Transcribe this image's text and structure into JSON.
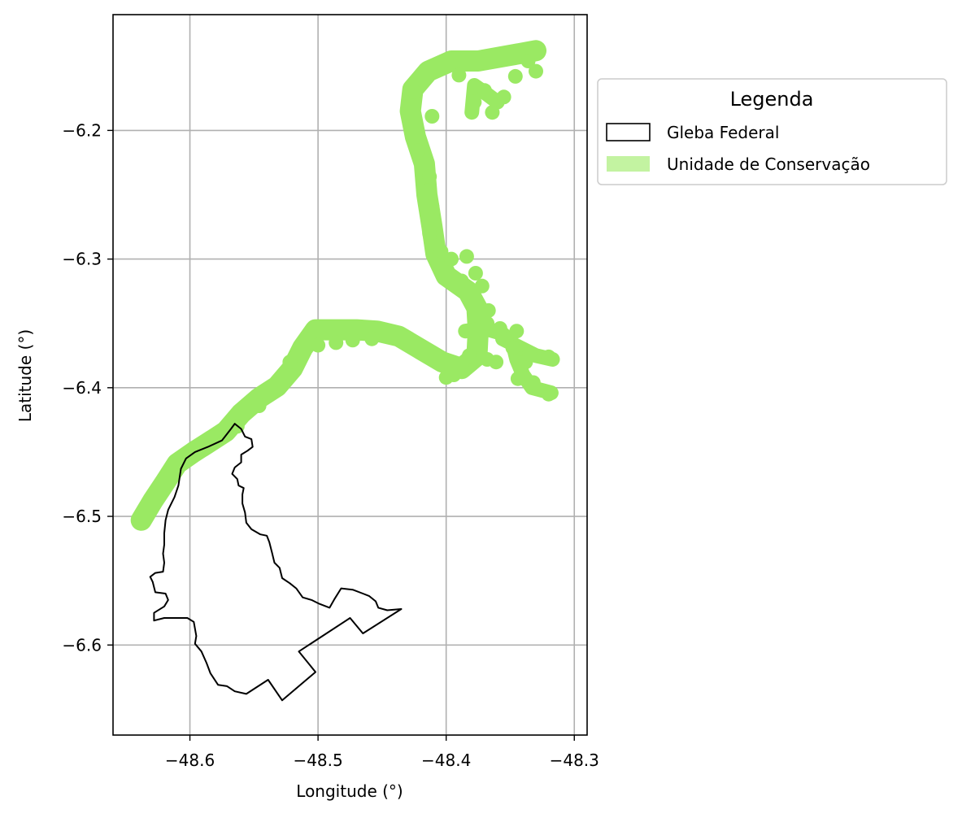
{
  "chart_data": {
    "type": "map",
    "xlabel": "Longitude (°)",
    "ylabel": "Latitude (°)",
    "xlim": [
      -48.66,
      -48.29
    ],
    "ylim": [
      -6.67,
      -6.11
    ],
    "grid": true,
    "x_ticks": [
      {
        "value": -48.6,
        "label": "−48.6"
      },
      {
        "value": -48.5,
        "label": "−48.5"
      },
      {
        "value": -48.4,
        "label": "−48.4"
      },
      {
        "value": -48.3,
        "label": "−48.3"
      }
    ],
    "y_ticks": [
      {
        "value": -6.2,
        "label": "−6.2"
      },
      {
        "value": -6.3,
        "label": "−6.3"
      },
      {
        "value": -6.4,
        "label": "−6.4"
      },
      {
        "value": -6.5,
        "label": "−6.5"
      },
      {
        "value": -6.6,
        "label": "−6.6"
      }
    ],
    "legend": {
      "title": "Legenda",
      "placement": "outside-right-top",
      "entries": [
        {
          "label": "Gleba Federal",
          "style": "outline",
          "color": "#000000"
        },
        {
          "label": "Unidade de Conservação",
          "style": "fill",
          "color": "#9ae963"
        }
      ]
    },
    "layers": [
      {
        "name": "Gleba Federal",
        "geometry": "polygon",
        "stroke": "#000000",
        "fill": "none",
        "coordinates": [
          [
            -48.565,
            -6.428
          ],
          [
            -48.56,
            -6.432
          ],
          [
            -48.557,
            -6.438
          ],
          [
            -48.552,
            -6.44
          ],
          [
            -48.551,
            -6.446
          ],
          [
            -48.555,
            -6.449
          ],
          [
            -48.56,
            -6.452
          ],
          [
            -48.56,
            -6.458
          ],
          [
            -48.565,
            -6.462
          ],
          [
            -48.567,
            -6.467
          ],
          [
            -48.563,
            -6.471
          ],
          [
            -48.562,
            -6.476
          ],
          [
            -48.558,
            -6.478
          ],
          [
            -48.559,
            -6.483
          ],
          [
            -48.559,
            -6.49
          ],
          [
            -48.557,
            -6.497
          ],
          [
            -48.556,
            -6.505
          ],
          [
            -48.552,
            -6.51
          ],
          [
            -48.545,
            -6.514
          ],
          [
            -48.54,
            -6.515
          ],
          [
            -48.538,
            -6.52
          ],
          [
            -48.536,
            -6.528
          ],
          [
            -48.534,
            -6.536
          ],
          [
            -48.53,
            -6.54
          ],
          [
            -48.528,
            -6.548
          ],
          [
            -48.522,
            -6.552
          ],
          [
            -48.517,
            -6.556
          ],
          [
            -48.512,
            -6.563
          ],
          [
            -48.505,
            -6.565
          ],
          [
            -48.499,
            -6.568
          ],
          [
            -48.491,
            -6.571
          ],
          [
            -48.487,
            -6.564
          ],
          [
            -48.482,
            -6.556
          ],
          [
            -48.473,
            -6.557
          ],
          [
            -48.465,
            -6.56
          ],
          [
            -48.46,
            -6.562
          ],
          [
            -48.455,
            -6.566
          ],
          [
            -48.453,
            -6.571
          ],
          [
            -48.446,
            -6.573
          ],
          [
            -48.435,
            -6.572
          ],
          [
            -48.465,
            -6.591
          ],
          [
            -48.475,
            -6.579
          ],
          [
            -48.515,
            -6.605
          ],
          [
            -48.502,
            -6.621
          ],
          [
            -48.528,
            -6.643
          ],
          [
            -48.539,
            -6.627
          ],
          [
            -48.556,
            -6.638
          ],
          [
            -48.565,
            -6.636
          ],
          [
            -48.571,
            -6.632
          ],
          [
            -48.578,
            -6.631
          ],
          [
            -48.584,
            -6.622
          ],
          [
            -48.587,
            -6.614
          ],
          [
            -48.591,
            -6.605
          ],
          [
            -48.596,
            -6.599
          ],
          [
            -48.595,
            -6.593
          ],
          [
            -48.597,
            -6.582
          ],
          [
            -48.602,
            -6.579
          ],
          [
            -48.61,
            -6.579
          ],
          [
            -48.62,
            -6.579
          ],
          [
            -48.628,
            -6.581
          ],
          [
            -48.628,
            -6.575
          ],
          [
            -48.62,
            -6.57
          ],
          [
            -48.617,
            -6.565
          ],
          [
            -48.619,
            -6.56
          ],
          [
            -48.627,
            -6.559
          ],
          [
            -48.629,
            -6.551
          ],
          [
            -48.631,
            -6.547
          ],
          [
            -48.627,
            -6.544
          ],
          [
            -48.621,
            -6.543
          ],
          [
            -48.62,
            -6.536
          ],
          [
            -48.621,
            -6.529
          ],
          [
            -48.62,
            -6.522
          ],
          [
            -48.62,
            -6.513
          ],
          [
            -48.619,
            -6.503
          ],
          [
            -48.617,
            -6.495
          ],
          [
            -48.612,
            -6.485
          ],
          [
            -48.609,
            -6.476
          ],
          [
            -48.607,
            -6.463
          ],
          [
            -48.603,
            -6.455
          ],
          [
            -48.596,
            -6.45
          ],
          [
            -48.586,
            -6.446
          ],
          [
            -48.575,
            -6.441
          ],
          [
            -48.568,
            -6.432
          ],
          [
            -48.565,
            -6.428
          ]
        ]
      },
      {
        "name": "Unidade de Conservação",
        "geometry": "buffered river",
        "fill": "#9ae963",
        "centerline": [
          [
            -48.638,
            -6.503
          ],
          [
            -48.629,
            -6.488
          ],
          [
            -48.619,
            -6.473
          ],
          [
            -48.61,
            -6.459
          ],
          [
            -48.597,
            -6.45
          ],
          [
            -48.586,
            -6.443
          ],
          [
            -48.572,
            -6.434
          ],
          [
            -48.56,
            -6.42
          ],
          [
            -48.546,
            -6.408
          ],
          [
            -48.532,
            -6.399
          ],
          [
            -48.52,
            -6.385
          ],
          [
            -48.512,
            -6.369
          ],
          [
            -48.502,
            -6.355
          ],
          [
            -48.488,
            -6.355
          ],
          [
            -48.47,
            -6.355
          ],
          [
            -48.454,
            -6.356
          ],
          [
            -48.437,
            -6.36
          ],
          [
            -48.42,
            -6.37
          ],
          [
            -48.403,
            -6.38
          ],
          [
            -48.388,
            -6.385
          ],
          [
            -48.376,
            -6.375
          ],
          [
            -48.375,
            -6.355
          ],
          [
            -48.376,
            -6.338
          ],
          [
            -48.383,
            -6.325
          ],
          [
            -48.4,
            -6.313
          ],
          [
            -48.408,
            -6.296
          ],
          [
            -48.411,
            -6.275
          ],
          [
            -48.415,
            -6.25
          ],
          [
            -48.417,
            -6.226
          ],
          [
            -48.424,
            -6.205
          ],
          [
            -48.428,
            -6.185
          ],
          [
            -48.426,
            -6.168
          ],
          [
            -48.414,
            -6.154
          ],
          [
            -48.396,
            -6.146
          ],
          [
            -48.375,
            -6.146
          ],
          [
            -48.352,
            -6.142
          ],
          [
            -48.33,
            -6.138
          ]
        ],
        "branches": [
          [
            [
              -48.385,
              -6.356
            ],
            [
              -48.37,
              -6.354
            ],
            [
              -48.356,
              -6.358
            ],
            [
              -48.348,
              -6.366
            ],
            [
              -48.345,
              -6.378
            ],
            [
              -48.34,
              -6.39
            ],
            [
              -48.333,
              -6.4
            ],
            [
              -48.318,
              -6.404
            ]
          ],
          [
            [
              -48.356,
              -6.362
            ],
            [
              -48.344,
              -6.368
            ],
            [
              -48.33,
              -6.375
            ],
            [
              -48.317,
              -6.378
            ]
          ],
          [
            [
              -48.38,
              -6.186
            ],
            [
              -48.378,
              -6.165
            ],
            [
              -48.368,
              -6.172
            ],
            [
              -48.36,
              -6.178
            ]
          ]
        ],
        "blobs": [
          [
            -48.394,
            -6.39
          ],
          [
            -48.388,
            -6.382
          ],
          [
            -48.4,
            -6.392
          ],
          [
            -48.486,
            -6.365
          ],
          [
            -48.5,
            -6.367
          ],
          [
            -48.473,
            -6.363
          ],
          [
            -48.458,
            -6.362
          ],
          [
            -48.598,
            -6.453
          ],
          [
            -48.575,
            -6.433
          ],
          [
            -48.563,
            -6.43
          ],
          [
            -48.546,
            -6.414
          ],
          [
            -48.522,
            -6.38
          ],
          [
            -48.413,
            -6.236
          ],
          [
            -48.411,
            -6.259
          ],
          [
            -48.413,
            -6.28
          ],
          [
            -48.408,
            -6.29
          ],
          [
            -48.396,
            -6.3
          ],
          [
            -48.384,
            -6.298
          ],
          [
            -48.377,
            -6.311
          ],
          [
            -48.372,
            -6.321
          ],
          [
            -48.367,
            -6.34
          ],
          [
            -48.358,
            -6.354
          ],
          [
            -48.348,
            -6.369
          ],
          [
            -48.338,
            -6.38
          ],
          [
            -48.344,
            -6.393
          ],
          [
            -48.332,
            -6.396
          ],
          [
            -48.32,
            -6.405
          ],
          [
            -48.361,
            -6.38
          ],
          [
            -48.335,
            -6.374
          ],
          [
            -48.32,
            -6.376
          ],
          [
            -48.411,
            -6.189
          ],
          [
            -48.425,
            -6.17
          ],
          [
            -48.39,
            -6.157
          ],
          [
            -48.378,
            -6.178
          ],
          [
            -48.37,
            -6.169
          ],
          [
            -48.364,
            -6.186
          ],
          [
            -48.355,
            -6.174
          ],
          [
            -48.346,
            -6.158
          ],
          [
            -48.336,
            -6.146
          ],
          [
            -48.33,
            -6.154
          ],
          [
            -48.422,
            -6.216
          ],
          [
            -48.415,
            -6.247
          ],
          [
            -48.404,
            -6.294
          ],
          [
            -48.388,
            -6.317
          ],
          [
            -48.368,
            -6.35
          ],
          [
            -48.345,
            -6.356
          ],
          [
            -48.368,
            -6.378
          ],
          [
            -48.382,
            -6.375
          ]
        ]
      }
    ]
  }
}
